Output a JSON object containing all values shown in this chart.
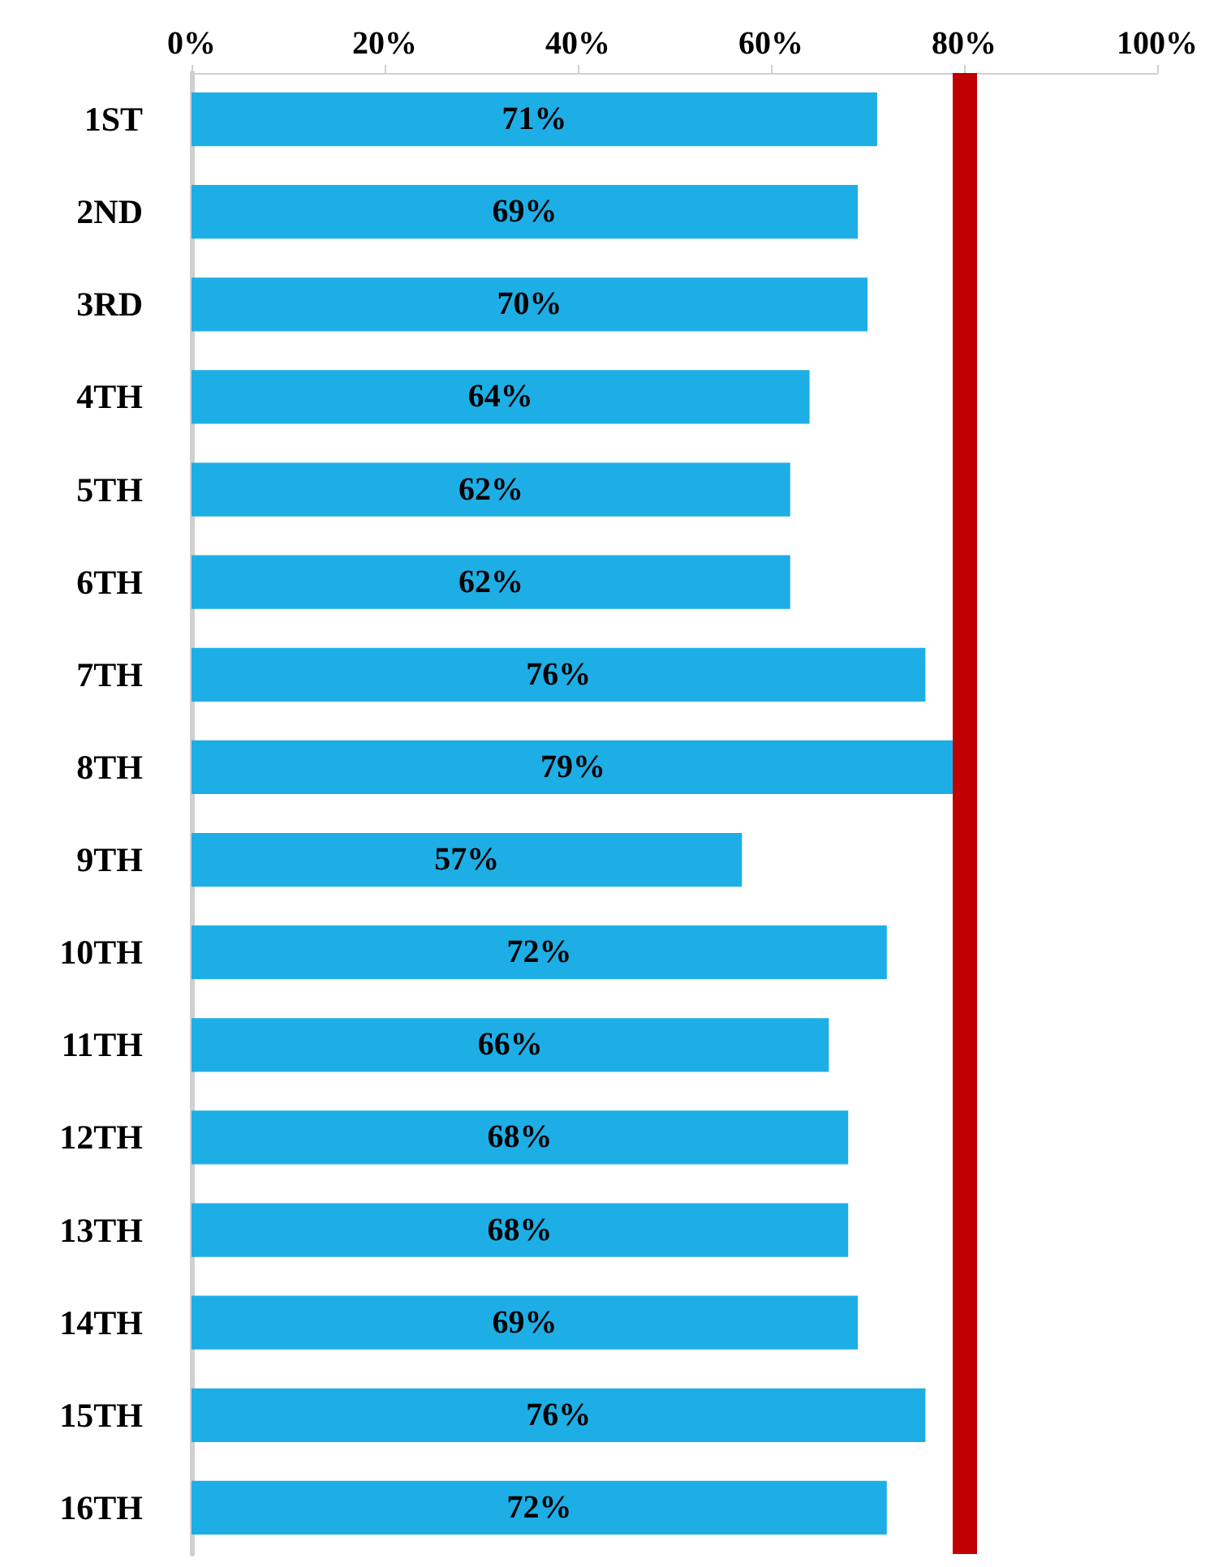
{
  "chart_data": {
    "type": "bar",
    "orientation": "horizontal",
    "categories": [
      "1ST",
      "2ND",
      "3RD",
      "4TH",
      "5TH",
      "6TH",
      "7TH",
      "8TH",
      "9TH",
      "10TH",
      "11TH",
      "12TH",
      "13TH",
      "14TH",
      "15TH",
      "16TH"
    ],
    "values": [
      71,
      69,
      70,
      64,
      62,
      62,
      76,
      79,
      57,
      72,
      66,
      68,
      68,
      69,
      76,
      72
    ],
    "value_labels": [
      "71%",
      "69%",
      "70%",
      "64%",
      "62%",
      "62%",
      "76%",
      "79%",
      "57%",
      "72%",
      "66%",
      "68%",
      "68%",
      "69%",
      "76%",
      "72%"
    ],
    "color": "#1eaee6",
    "xlim": [
      0,
      100
    ],
    "xticks": [
      {
        "value": 0,
        "label": "0%"
      },
      {
        "value": 20,
        "label": "20%"
      },
      {
        "value": 40,
        "label": "40%"
      },
      {
        "value": 60,
        "label": "60%"
      },
      {
        "value": 80,
        "label": "80%"
      },
      {
        "value": 100,
        "label": "100%"
      }
    ],
    "ref_lines": [
      {
        "axis": "x",
        "value": 80,
        "color": "#c00000"
      }
    ],
    "grid": false
  }
}
